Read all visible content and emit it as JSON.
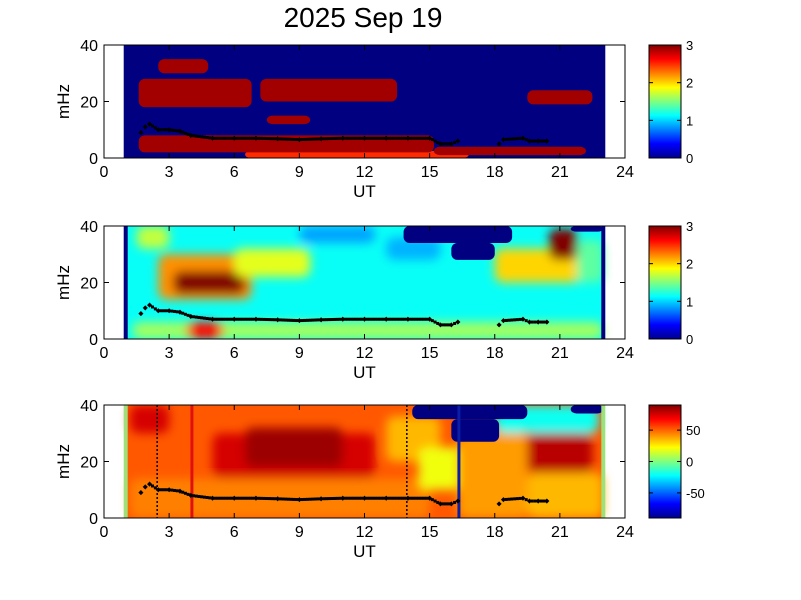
{
  "title": "2025 Sep 19",
  "chart_data": [
    {
      "type": "heatmap",
      "panel": "power-spectrogram",
      "xlabel": "UT",
      "ylabel": "mHz",
      "xlim": [
        0,
        24
      ],
      "ylim": [
        0,
        40
      ],
      "xticks": [
        "0",
        "3",
        "6",
        "9",
        "12",
        "15",
        "18",
        "21",
        "24"
      ],
      "yticks": [
        "0",
        "20",
        "40"
      ],
      "colorbar": {
        "min": 0,
        "max": 3,
        "ticks": [
          "0",
          "1",
          "2",
          "3"
        ]
      },
      "data_range_ut": [
        1,
        23
      ],
      "background_value": 0,
      "regions": [
        {
          "t0": 6.5,
          "t1": 16.8,
          "f0": 0,
          "f1": 2.5,
          "v": 2.5
        },
        {
          "t0": 1.6,
          "t1": 15.2,
          "f0": 2,
          "f1": 8,
          "v": 2.9
        },
        {
          "t0": 15.2,
          "t1": 22.2,
          "f0": 1,
          "f1": 4,
          "v": 2.9
        },
        {
          "t0": 1.6,
          "t1": 6.8,
          "f0": 18,
          "f1": 28,
          "v": 2.9
        },
        {
          "t0": 7.2,
          "t1": 13.5,
          "f0": 20,
          "f1": 28,
          "v": 2.9
        },
        {
          "t0": 2.5,
          "t1": 4.8,
          "f0": 30,
          "f1": 35,
          "v": 2.9
        },
        {
          "t0": 7.5,
          "t1": 9.5,
          "f0": 12,
          "f1": 15,
          "v": 2.9
        },
        {
          "t0": 19.5,
          "t1": 22.5,
          "f0": 19,
          "f1": 24,
          "v": 2.9
        }
      ],
      "series": [
        {
          "x": [
            1.7,
            1.9,
            2.1,
            2.5,
            3.0,
            3.5,
            4.0,
            5.0,
            6.0,
            7.0,
            8.0,
            9.0,
            10.0,
            11.0,
            12.0,
            13.0,
            14.0,
            15.0,
            15.5,
            16.0,
            16.3
          ],
          "y": [
            9,
            11,
            12,
            10,
            10,
            9.5,
            8,
            7,
            7,
            7,
            6.8,
            6.5,
            6.8,
            7,
            7,
            7,
            7,
            7,
            5,
            5,
            6
          ]
        },
        {
          "x": [
            18.2,
            18.4,
            19.3,
            19.6,
            20.0,
            20.4
          ],
          "y": [
            5,
            6.5,
            7,
            6,
            6,
            6
          ]
        }
      ]
    },
    {
      "type": "heatmap",
      "panel": "ratio-spectrogram",
      "xlabel": "UT",
      "ylabel": "mHz",
      "xlim": [
        0,
        24
      ],
      "ylim": [
        0,
        40
      ],
      "xticks": [
        "0",
        "3",
        "6",
        "9",
        "12",
        "15",
        "18",
        "21",
        "24"
      ],
      "yticks": [
        "0",
        "20",
        "40"
      ],
      "colorbar": {
        "min": 0,
        "max": 3,
        "ticks": [
          "0",
          "1",
          "2",
          "3"
        ]
      },
      "data_range_ut": [
        1,
        23
      ],
      "background_value": 1.15,
      "regions": [
        {
          "t0": 1.3,
          "t1": 23,
          "f0": 0,
          "f1": 6,
          "v": 1.6
        },
        {
          "t0": 3.8,
          "t1": 5.5,
          "f0": 0,
          "f1": 6,
          "v": 2.6
        },
        {
          "t0": 2.5,
          "t1": 6.8,
          "f0": 14,
          "f1": 30,
          "v": 2.2
        },
        {
          "t0": 3.2,
          "t1": 6.5,
          "f0": 16,
          "f1": 24,
          "v": 3.0
        },
        {
          "t0": 6.0,
          "t1": 9.5,
          "f0": 22,
          "f1": 32,
          "v": 1.8
        },
        {
          "t0": 1.5,
          "t1": 3.0,
          "f0": 32,
          "f1": 40,
          "v": 1.7
        },
        {
          "t0": 9.0,
          "t1": 12.5,
          "f0": 34,
          "f1": 40,
          "v": 0.85
        },
        {
          "t0": 13.0,
          "t1": 15.5,
          "f0": 28,
          "f1": 36,
          "v": 0.9
        },
        {
          "t0": 18.0,
          "t1": 22.0,
          "f0": 20,
          "f1": 32,
          "v": 2.0
        },
        {
          "t0": 20.5,
          "t1": 21.8,
          "f0": 28,
          "f1": 39,
          "v": 3.0
        },
        {
          "t0": 21.8,
          "t1": 23,
          "f0": 20,
          "f1": 35,
          "v": 1.4
        }
      ],
      "masks": [
        {
          "t0": 13.8,
          "t1": 18.8,
          "f0": 34,
          "f1": 40,
          "v": 0
        },
        {
          "t0": 16.0,
          "t1": 18.0,
          "f0": 28,
          "f1": 34,
          "v": 0
        },
        {
          "t0": 21.5,
          "t1": 23.0,
          "f0": 38,
          "f1": 40,
          "v": 0
        }
      ],
      "series": [
        {
          "x": [
            1.7,
            1.9,
            2.1,
            2.5,
            3.0,
            3.5,
            4.0,
            5.0,
            6.0,
            7.0,
            8.0,
            9.0,
            10.0,
            11.0,
            12.0,
            13.0,
            14.0,
            15.0,
            15.5,
            16.0,
            16.3
          ],
          "y": [
            9,
            11,
            12,
            10,
            10,
            9.5,
            8,
            7,
            7,
            7,
            6.8,
            6.5,
            6.8,
            7,
            7,
            7,
            7,
            7,
            5,
            5,
            6
          ]
        },
        {
          "x": [
            18.2,
            18.4,
            19.3,
            19.6,
            20.0,
            20.4
          ],
          "y": [
            5,
            6.5,
            7,
            6,
            6,
            6
          ]
        }
      ]
    },
    {
      "type": "heatmap",
      "panel": "phase-spectrogram",
      "xlabel": "UT",
      "ylabel": "mHz",
      "xlim": [
        0,
        24
      ],
      "ylim": [
        0,
        40
      ],
      "xticks": [
        "0",
        "3",
        "6",
        "9",
        "12",
        "15",
        "18",
        "21",
        "24"
      ],
      "yticks": [
        "0",
        "20",
        "40"
      ],
      "colorbar": {
        "min": -90,
        "max": 90,
        "ticks": [
          "-50",
          "0",
          "50"
        ]
      },
      "data_range_ut": [
        1,
        23
      ],
      "background_value": 52,
      "regions": [
        {
          "t0": 1.2,
          "t1": 15.0,
          "f0": 0,
          "f1": 14,
          "v": 45
        },
        {
          "t0": 5.0,
          "t1": 12.5,
          "f0": 14,
          "f1": 30,
          "v": 75
        },
        {
          "t0": 6.5,
          "t1": 11.0,
          "f0": 18,
          "f1": 32,
          "v": 85
        },
        {
          "t0": 1.2,
          "t1": 3.0,
          "f0": 30,
          "f1": 40,
          "v": 75
        },
        {
          "t0": 13.0,
          "t1": 15.5,
          "f0": 20,
          "f1": 36,
          "v": 35
        },
        {
          "t0": 14.5,
          "t1": 16.5,
          "f0": 10,
          "f1": 25,
          "v": 20
        },
        {
          "t0": 16.3,
          "t1": 19.5,
          "f0": 0,
          "f1": 30,
          "v": 40
        },
        {
          "t0": 18.0,
          "t1": 22.8,
          "f0": 30,
          "f1": 40,
          "v": -20
        },
        {
          "t0": 19.5,
          "t1": 22.5,
          "f0": 16,
          "f1": 30,
          "v": 80
        },
        {
          "t0": 19.5,
          "t1": 23.0,
          "f0": 0,
          "f1": 16,
          "v": 35
        }
      ],
      "masks": [
        {
          "t0": 14.2,
          "t1": 19.5,
          "f0": 35,
          "f1": 40,
          "v": -90
        },
        {
          "t0": 16.0,
          "t1": 18.2,
          "f0": 27,
          "f1": 35,
          "v": -90
        },
        {
          "t0": 21.5,
          "t1": 23.0,
          "f0": 37,
          "f1": 40,
          "v": -90
        }
      ],
      "series": [
        {
          "x": [
            1.7,
            1.9,
            2.1,
            2.5,
            3.0,
            3.5,
            4.0,
            5.0,
            6.0,
            7.0,
            8.0,
            9.0,
            10.0,
            11.0,
            12.0,
            13.0,
            14.0,
            15.0,
            15.5,
            16.0,
            16.3
          ],
          "y": [
            9,
            11,
            12,
            10,
            10,
            9.5,
            8,
            7,
            7,
            7,
            6.8,
            6.5,
            6.8,
            7,
            7,
            7,
            7,
            7,
            5,
            5,
            6
          ]
        },
        {
          "x": [
            18.2,
            18.4,
            19.3,
            19.6,
            20.0,
            20.4
          ],
          "y": [
            5,
            6.5,
            7,
            6,
            6,
            6
          ]
        }
      ],
      "markers": [
        {
          "ut": 4.05,
          "color": "#e01010",
          "style": "solid"
        },
        {
          "ut": 16.35,
          "color": "#0a1ea8",
          "style": "solid"
        },
        {
          "ut": 2.45,
          "color": "#000000",
          "style": "dotted"
        },
        {
          "ut": 13.95,
          "color": "#000000",
          "style": "dotted"
        }
      ],
      "edge_color": "#9ee07a"
    }
  ]
}
